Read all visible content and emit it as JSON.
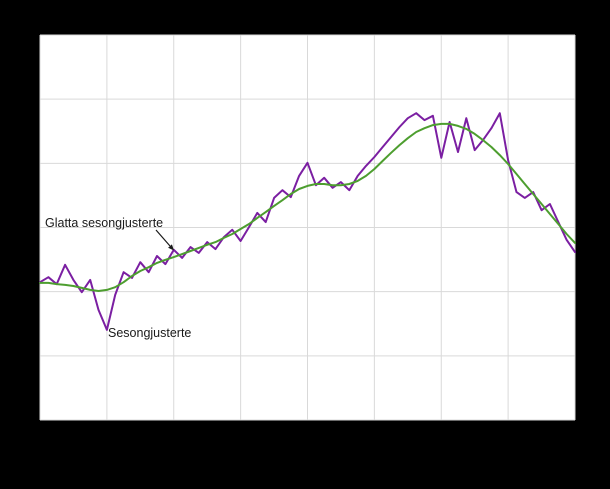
{
  "chart_data": {
    "type": "line",
    "title": "",
    "xlabel": "",
    "ylabel": "",
    "ylim": [
      0,
      100
    ],
    "grid": true,
    "x_gridline_count": 9,
    "y_gridline_count": 7,
    "legend_position": "inline-annotations",
    "series": [
      {
        "id": "seasonal",
        "name": "Sesongjusterte",
        "color": "#7b1fa2",
        "width": 2,
        "values": [
          35.8,
          37.1,
          35.3,
          40.3,
          36.4,
          33.2,
          36.4,
          28.6,
          23.4,
          32.5,
          38.4,
          36.9,
          41.0,
          38.4,
          42.6,
          40.5,
          44.2,
          42.1,
          44.9,
          43.4,
          46.2,
          44.4,
          47.5,
          49.4,
          46.5,
          50.1,
          53.8,
          51.4,
          57.7,
          59.7,
          57.9,
          63.4,
          66.8,
          61.0,
          62.9,
          60.3,
          61.8,
          59.7,
          63.4,
          66.0,
          68.3,
          70.9,
          73.5,
          76.1,
          78.4,
          79.7,
          77.9,
          79.0,
          68.1,
          77.4,
          69.6,
          78.4,
          70.1,
          72.7,
          75.8,
          79.7,
          67.5,
          59.2,
          57.7,
          59.2,
          54.5,
          56.1,
          51.4,
          46.8,
          43.6
        ]
      },
      {
        "id": "smoothed",
        "name": "Glatta sesongjusterte",
        "color": "#4d9e2f",
        "width": 2,
        "values": [
          35.6,
          35.6,
          35.3,
          35.1,
          34.8,
          34.3,
          33.8,
          33.5,
          33.8,
          34.5,
          35.8,
          37.4,
          38.7,
          39.7,
          40.8,
          41.6,
          42.3,
          43.1,
          43.9,
          44.7,
          45.5,
          46.2,
          47.3,
          48.3,
          49.6,
          50.9,
          52.5,
          54.0,
          55.6,
          57.1,
          58.7,
          60.0,
          60.8,
          61.3,
          61.3,
          61.0,
          61.0,
          61.3,
          62.1,
          63.4,
          65.2,
          67.3,
          69.4,
          71.4,
          73.2,
          74.8,
          75.8,
          76.6,
          76.9,
          76.9,
          76.4,
          75.6,
          74.3,
          72.7,
          70.9,
          68.8,
          66.5,
          63.9,
          61.3,
          58.7,
          56.1,
          53.5,
          50.9,
          48.3,
          46.0
        ]
      }
    ]
  },
  "annotations": {
    "smoothed_label": "Glatta sesongjusterte",
    "seasonal_label": "Sesongjusterte"
  },
  "colors": {
    "background": "#000000",
    "plot_background": "#ffffff",
    "gridline": "#d9d9d9",
    "smoothed_line": "#4d9e2f",
    "seasonal_line": "#7b1fa2",
    "annotation_text": "#1a1a1a"
  }
}
